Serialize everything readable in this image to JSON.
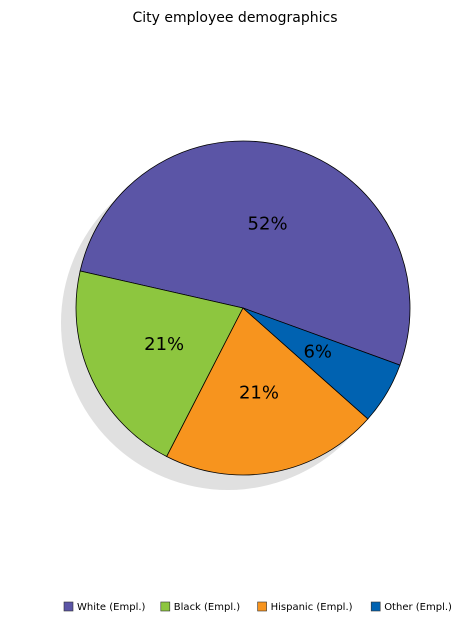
{
  "chart_data": {
    "type": "pie",
    "title": "City employee demographics",
    "categories": [
      "White (Empl.)",
      "Black (Empl.)",
      "Hispanic (Empl.)",
      "Other (Empl.)"
    ],
    "values": [
      52,
      21,
      21,
      6
    ],
    "value_labels": [
      "52%",
      "21%",
      "21%",
      "6%"
    ],
    "colors": [
      "#5b55a6",
      "#8dc63f",
      "#f7941e",
      "#0062b1"
    ],
    "legend": "bottom-right"
  }
}
